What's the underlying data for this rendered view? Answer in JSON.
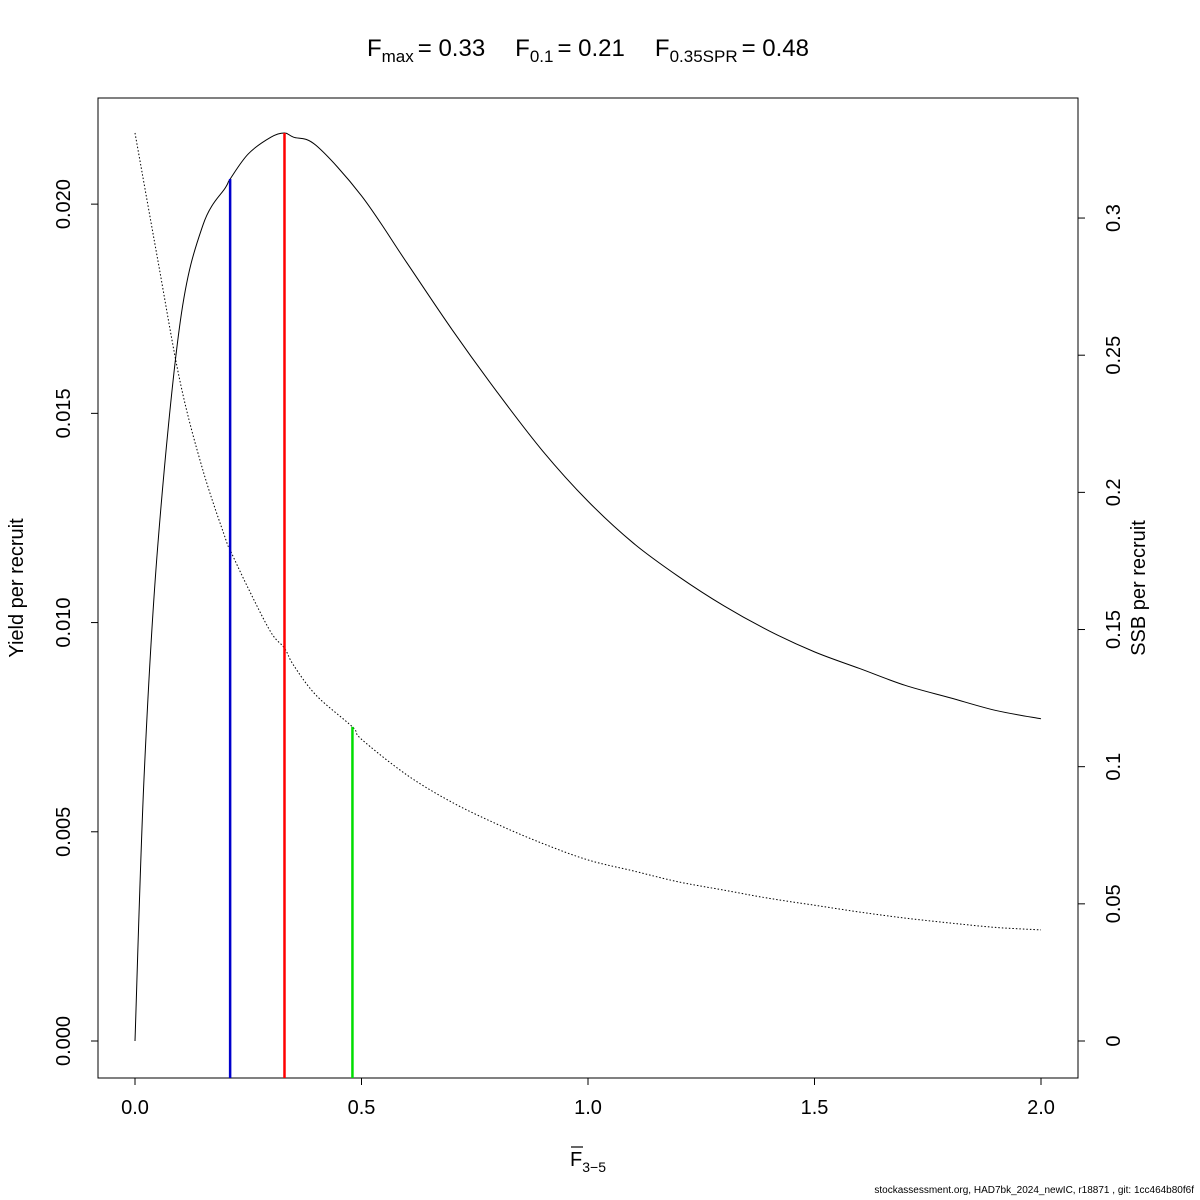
{
  "title": {
    "parts": [
      {
        "sym": "F",
        "sub": "max",
        "rhs": "= 0.33"
      },
      {
        "sym": "F",
        "sub": "0.1",
        "rhs": "= 0.21"
      },
      {
        "sym": "F",
        "sub": "0.35SPR",
        "rhs": "= 0.48"
      }
    ]
  },
  "footer": "stockassessment.org, HAD7bk_2024_newIC, r18871 , git: 1cc464b80f6f",
  "chart_data": {
    "type": "line",
    "xlabel": {
      "sym": "F",
      "sub": "3−5"
    },
    "ylabel_left": "Yield per recruit",
    "ylabel_right": "SSB per recruit",
    "x_range": [
      0,
      2
    ],
    "x_ticks": [
      "0.0",
      "0.5",
      "1.0",
      "1.5",
      "2.0"
    ],
    "y_left_range": [
      0,
      0.0217
    ],
    "y_left_ticks": [
      "0.000",
      "0.005",
      "0.010",
      "0.015",
      "0.020"
    ],
    "y_right_range": [
      0,
      0.331
    ],
    "y_right_ticks": [
      "0",
      "0.05",
      "0.1",
      "0.15",
      "0.2",
      "0.25",
      "0.3"
    ],
    "grid": false,
    "series": [
      {
        "axis": "left",
        "style": "solid",
        "color": "#000000",
        "x": [
          0,
          0.02,
          0.05,
          0.1,
          0.15,
          0.2,
          0.21,
          0.25,
          0.3,
          0.33,
          0.35,
          0.4,
          0.5,
          0.6,
          0.7,
          0.8,
          0.9,
          1.0,
          1.1,
          1.2,
          1.3,
          1.4,
          1.5,
          1.6,
          1.7,
          1.8,
          1.9,
          2.0
        ],
        "y": [
          0,
          0.0063,
          0.0118,
          0.0172,
          0.0195,
          0.0204,
          0.0206,
          0.0212,
          0.0216,
          0.0217,
          0.0216,
          0.0214,
          0.0202,
          0.0186,
          0.017,
          0.0155,
          0.0141,
          0.0129,
          0.0119,
          0.0111,
          0.0104,
          0.0098,
          0.0093,
          0.0089,
          0.0085,
          0.0082,
          0.0079,
          0.0077
        ]
      },
      {
        "axis": "right",
        "style": "dotted",
        "color": "#000000",
        "x": [
          0,
          0.05,
          0.1,
          0.15,
          0.2,
          0.21,
          0.25,
          0.3,
          0.33,
          0.35,
          0.4,
          0.48,
          0.5,
          0.6,
          0.7,
          0.8,
          0.9,
          1.0,
          1.1,
          1.2,
          1.3,
          1.4,
          1.5,
          1.6,
          1.7,
          1.8,
          1.9,
          2.0
        ],
        "y": [
          0.331,
          0.285,
          0.24,
          0.208,
          0.183,
          0.179,
          0.165,
          0.149,
          0.1432,
          0.137,
          0.126,
          0.1145,
          0.11,
          0.097,
          0.087,
          0.079,
          0.072,
          0.066,
          0.062,
          0.058,
          0.055,
          0.052,
          0.0495,
          0.047,
          0.0448,
          0.043,
          0.0414,
          0.0405
        ]
      }
    ],
    "reference_lines": [
      {
        "label": "Fmax",
        "x": 0.33,
        "axis": "left",
        "y_top": 0.0217,
        "color": "#ff0000"
      },
      {
        "label": "F0.1",
        "x": 0.21,
        "axis": "left",
        "y_top": 0.0206,
        "color": "#0000cc"
      },
      {
        "label": "F0.35SPR",
        "x": 0.48,
        "axis": "right",
        "y_top": 0.1145,
        "color": "#00dd00"
      }
    ]
  }
}
